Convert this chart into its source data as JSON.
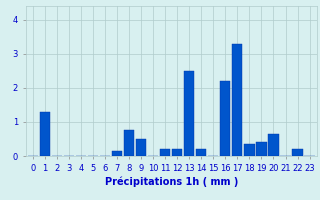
{
  "hours": [
    0,
    1,
    2,
    3,
    4,
    5,
    6,
    7,
    8,
    9,
    10,
    11,
    12,
    13,
    14,
    15,
    16,
    17,
    18,
    19,
    20,
    21,
    22,
    23
  ],
  "values": [
    0.0,
    1.3,
    0.0,
    0.0,
    0.0,
    0.0,
    0.0,
    0.15,
    0.75,
    0.5,
    0.0,
    0.2,
    0.2,
    2.5,
    0.2,
    0.0,
    2.2,
    3.3,
    0.35,
    0.4,
    0.65,
    0.0,
    0.2,
    0.0
  ],
  "bar_color": "#0055cc",
  "bar_edge_color": "#0033aa",
  "bg_color": "#d8f0f0",
  "grid_color": "#b0cccc",
  "text_color": "#0000cc",
  "xlabel": "Précipitations 1h ( mm )",
  "ylim": [
    0,
    4.4
  ],
  "yticks": [
    0,
    1,
    2,
    3,
    4
  ],
  "label_fontsize": 7,
  "tick_fontsize": 6
}
